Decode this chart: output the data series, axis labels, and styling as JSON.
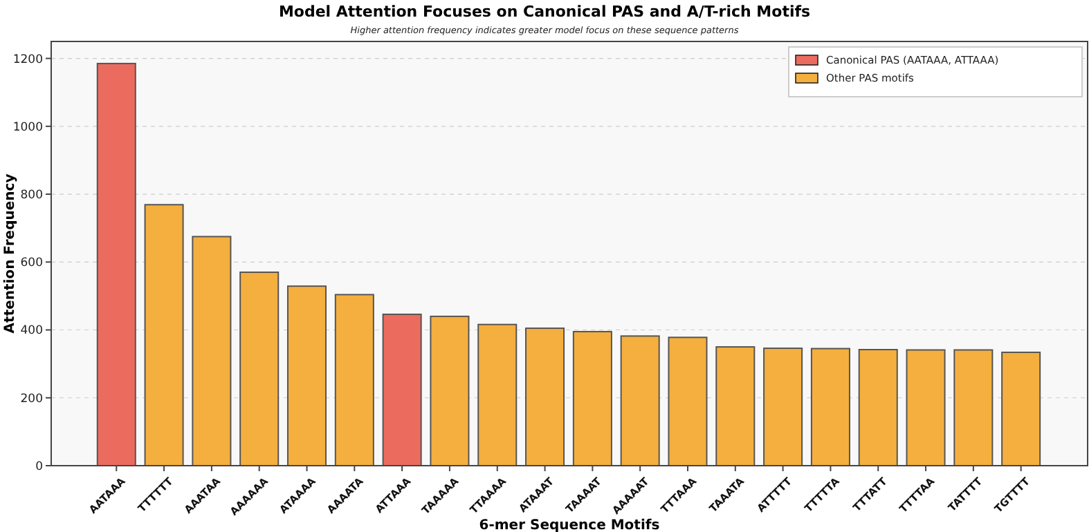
{
  "chart_data": {
    "type": "bar",
    "title": "Model Attention Focuses on Canonical PAS and A/T-rich Motifs",
    "subtitle": "Higher attention frequency indicates greater model focus on these sequence patterns",
    "xlabel": "6-mer Sequence Motifs",
    "ylabel": "Attention Frequency",
    "categories": [
      "AATAAA",
      "TTTTTT",
      "AAATAA",
      "AAAAAA",
      "ATAAAA",
      "AAAATA",
      "ATTAAA",
      "TAAAAA",
      "TTAAAA",
      "ATAAAT",
      "TAAAAT",
      "AAAAAT",
      "TTTAAA",
      "TAAATA",
      "ATTTTT",
      "TTTTTA",
      "TTTATT",
      "TTTTAA",
      "TATTTT",
      "TGTTTT"
    ],
    "series": [
      {
        "name": "Canonical PAS (AATAAA, ATTAAA)",
        "color": "#ec6b5f",
        "values": [
          1185,
          null,
          null,
          null,
          null,
          null,
          446,
          null,
          null,
          null,
          null,
          null,
          null,
          null,
          null,
          null,
          null,
          null,
          null,
          null
        ]
      },
      {
        "name": "Other PAS motifs",
        "color": "#f5af3e",
        "values": [
          null,
          769,
          675,
          570,
          529,
          504,
          null,
          440,
          416,
          405,
          395,
          382,
          378,
          350,
          346,
          345,
          342,
          341,
          341,
          334
        ]
      }
    ],
    "ylim": [
      0,
      1250
    ],
    "yticks": [
      0,
      200,
      400,
      600,
      800,
      1000,
      1200
    ],
    "grid": "y",
    "legend": "top right"
  }
}
